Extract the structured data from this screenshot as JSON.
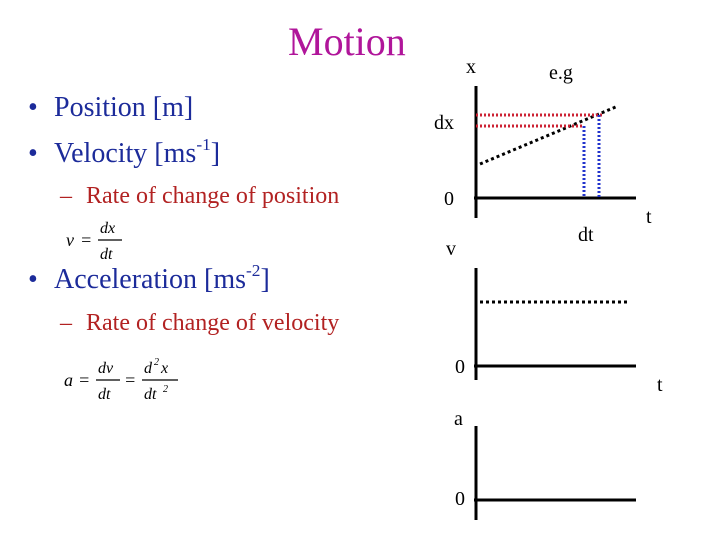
{
  "title": "Motion",
  "bullets": {
    "position": {
      "text": "Position [m]"
    },
    "velocity": {
      "text": "Velocity [ms",
      "sup": "-1",
      "close": "]"
    },
    "velocity_sub": "Rate of change of position",
    "acceleration": {
      "text": "Acceleration [ms",
      "sup": "-2",
      "close": "]"
    },
    "acceleration_sub": "Rate of change of velocity"
  },
  "equations": {
    "v": {
      "lhs": "v",
      "eq": "=",
      "num": "dx",
      "den": "dt"
    },
    "a": {
      "lhs": "a",
      "eq1": "=",
      "num1": "dv",
      "den1": "dt",
      "eq2": "=",
      "num2_base": "d",
      "num2_exp": "2",
      "num2_var": "x",
      "den2_base": "dt",
      "den2_exp": "2"
    }
  },
  "graph_labels": {
    "x": "x",
    "eg": "e.g",
    "dx": "dx",
    "zero_x": "0",
    "dt": "dt",
    "t_top": "t",
    "v": "v",
    "zero_v": "0",
    "t_mid": "t",
    "a": "a",
    "zero_a": "0"
  },
  "colors": {
    "title": "#b0159a",
    "bullet": "#1c2b9a",
    "sub": "#b22222",
    "dx_marker": "#cc2233",
    "dt_marker": "#2233cc"
  }
}
